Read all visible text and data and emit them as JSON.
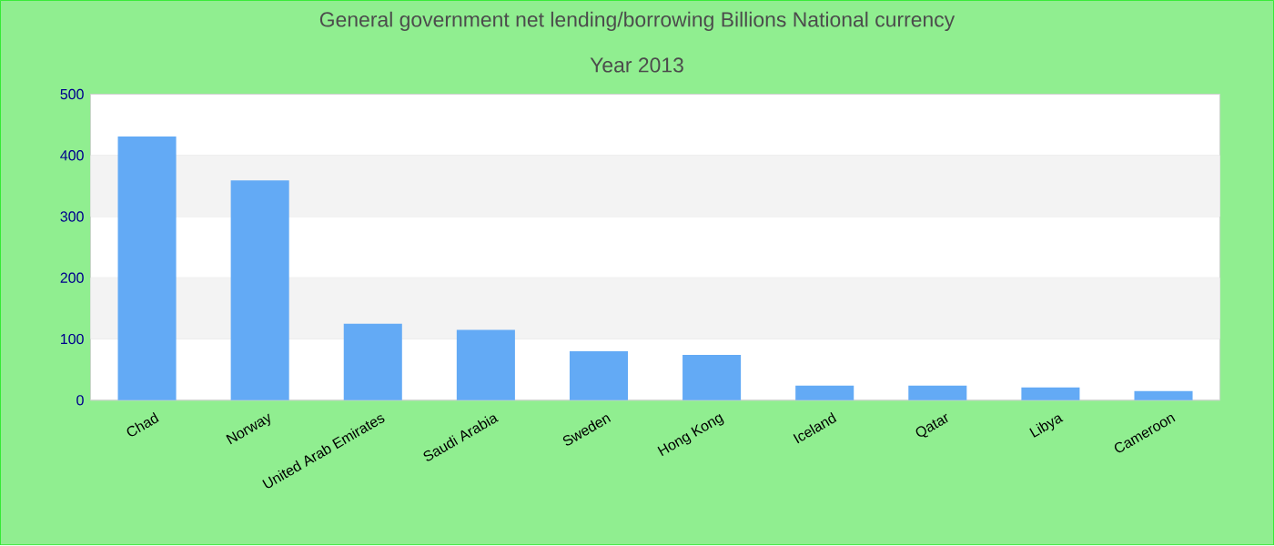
{
  "chart_data": {
    "type": "bar",
    "title": "General government net lending/borrowing Billions National currency",
    "subtitle": "Year 2013",
    "categories": [
      "Chad",
      "Norway",
      "United Arab Emirates",
      "Saudi Arabia",
      "Sweden",
      "Hong Kong",
      "Iceland",
      "Qatar",
      "Libya",
      "Cameroon"
    ],
    "values": [
      431,
      359,
      125,
      115,
      80,
      74,
      24,
      24,
      21,
      15
    ],
    "color": "#63aaf5",
    "ylim": [
      0,
      500
    ],
    "yticks": [
      0,
      100,
      200,
      300,
      400,
      500
    ],
    "grid": "y"
  }
}
